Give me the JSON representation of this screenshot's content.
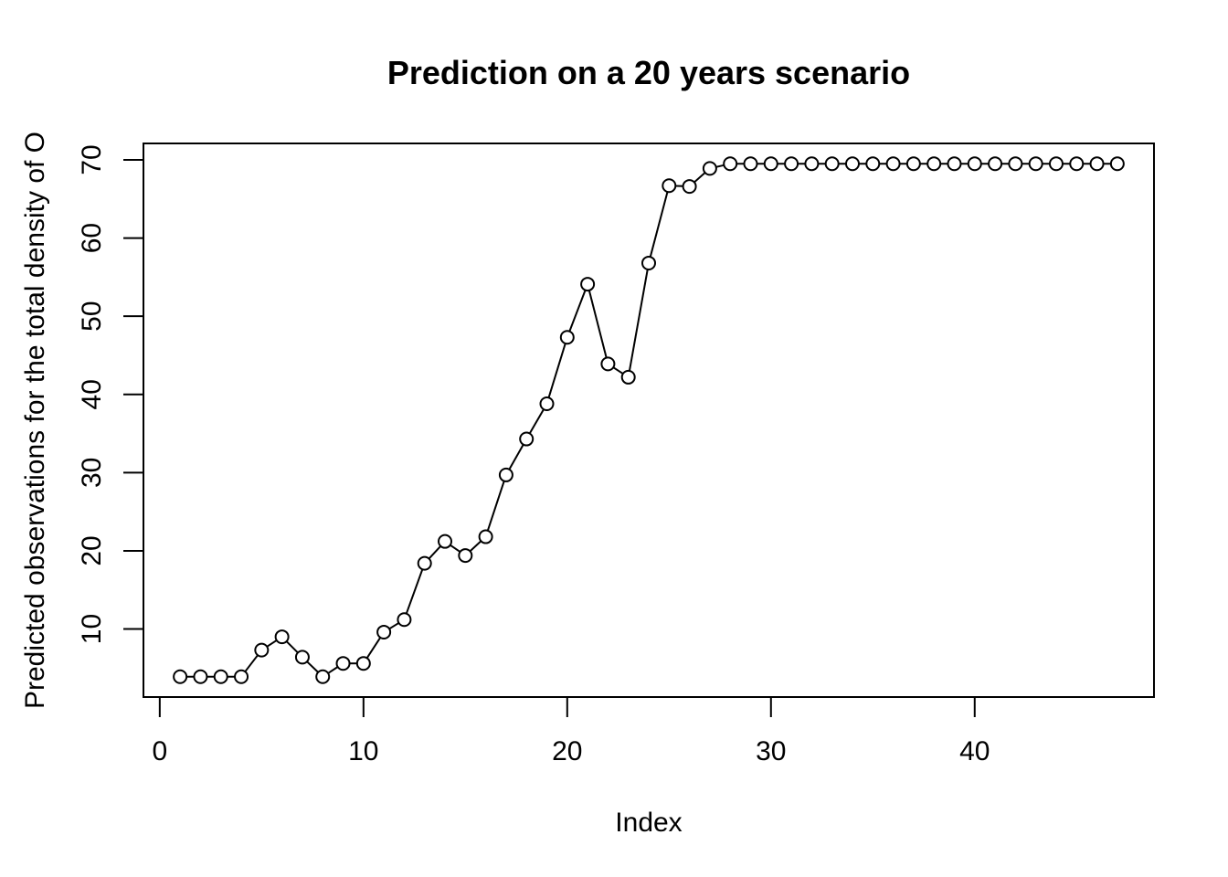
{
  "chart_data": {
    "type": "line",
    "title": "Prediction on a 20 years scenario",
    "xlabel": "Index",
    "ylabel": "Predicted observations for the total density of O",
    "xlim": [
      -0.8,
      48.8
    ],
    "ylim": [
      1.3,
      72.1
    ],
    "xticks": [
      0,
      10,
      20,
      30,
      40
    ],
    "yticks": [
      10,
      20,
      30,
      40,
      50,
      60,
      70
    ],
    "grid": false,
    "markers": "open-circle",
    "x": [
      1,
      2,
      3,
      4,
      5,
      6,
      7,
      8,
      9,
      10,
      11,
      12,
      13,
      14,
      15,
      16,
      17,
      18,
      19,
      20,
      21,
      22,
      23,
      24,
      25,
      26,
      27,
      28,
      29,
      30,
      31,
      32,
      33,
      34,
      35,
      36,
      37,
      38,
      39,
      40,
      41,
      42,
      43,
      44,
      45,
      46,
      47
    ],
    "values": [
      3.9,
      3.9,
      3.9,
      3.9,
      7.3,
      9.0,
      6.4,
      3.9,
      5.6,
      5.6,
      9.6,
      11.2,
      18.4,
      21.2,
      19.4,
      21.8,
      29.7,
      34.3,
      38.8,
      47.3,
      54.1,
      43.9,
      42.2,
      56.8,
      66.7,
      66.6,
      68.9,
      69.5,
      69.5,
      69.5,
      69.5,
      69.5,
      69.5,
      69.5,
      69.5,
      69.5,
      69.5,
      69.5,
      69.5,
      69.5,
      69.5,
      69.5,
      69.5,
      69.5,
      69.5,
      69.5,
      69.5
    ]
  }
}
